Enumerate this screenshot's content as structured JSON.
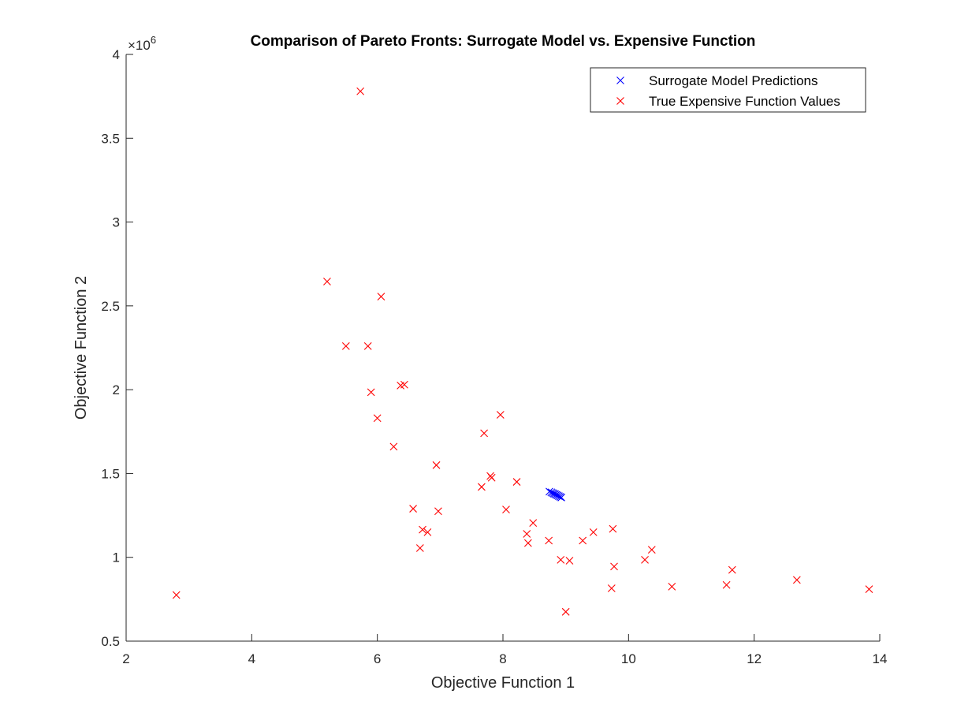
{
  "chart_data": {
    "type": "scatter",
    "title": "Comparison of Pareto Fronts: Surrogate Model vs. Expensive Function",
    "xlabel": "Objective Function 1",
    "ylabel": "Objective Function 2",
    "xlim": [
      2,
      14
    ],
    "ylim": [
      500000,
      4000000
    ],
    "x_ticks": [
      "2",
      "4",
      "6",
      "8",
      "10",
      "12",
      "14"
    ],
    "y_ticks": [
      "0.5",
      "1",
      "1.5",
      "2",
      "2.5",
      "3",
      "3.5",
      "4"
    ],
    "y_exponent_base": "×10",
    "y_exponent_power": "6",
    "legend_position": "top-right",
    "grid": false,
    "series": [
      {
        "name": "Surrogate Model Predictions",
        "color": "#0000ff",
        "marker": "x",
        "points": [
          [
            8.74,
            1392000
          ],
          [
            8.77,
            1388000
          ],
          [
            8.79,
            1384000
          ],
          [
            8.81,
            1380000
          ],
          [
            8.83,
            1377000
          ],
          [
            8.85,
            1373000
          ],
          [
            8.87,
            1369000
          ],
          [
            8.89,
            1365000
          ],
          [
            8.91,
            1361000
          ],
          [
            8.93,
            1357000
          ]
        ]
      },
      {
        "name": "True Expensive Function Values",
        "color": "#ff0000",
        "marker": "x",
        "points": [
          [
            2.8,
            775000
          ],
          [
            5.2,
            2645000
          ],
          [
            5.5,
            2260000
          ],
          [
            5.73,
            3780000
          ],
          [
            5.85,
            2260000
          ],
          [
            5.9,
            1985000
          ],
          [
            6.0,
            1830000
          ],
          [
            6.06,
            2555000
          ],
          [
            6.26,
            1660000
          ],
          [
            6.37,
            2025000
          ],
          [
            6.43,
            2030000
          ],
          [
            6.57,
            1290000
          ],
          [
            6.68,
            1055000
          ],
          [
            6.72,
            1165000
          ],
          [
            6.8,
            1150000
          ],
          [
            6.94,
            1550000
          ],
          [
            6.97,
            1275000
          ],
          [
            7.66,
            1420000
          ],
          [
            7.7,
            1740000
          ],
          [
            7.8,
            1485000
          ],
          [
            7.82,
            1475000
          ],
          [
            7.96,
            1850000
          ],
          [
            8.05,
            1285000
          ],
          [
            8.22,
            1450000
          ],
          [
            8.38,
            1140000
          ],
          [
            8.4,
            1085000
          ],
          [
            8.48,
            1205000
          ],
          [
            8.73,
            1100000
          ],
          [
            8.92,
            985000
          ],
          [
            9.0,
            675000
          ],
          [
            9.06,
            980000
          ],
          [
            9.27,
            1100000
          ],
          [
            9.44,
            1150000
          ],
          [
            9.73,
            815000
          ],
          [
            9.75,
            1170000
          ],
          [
            9.77,
            945000
          ],
          [
            10.26,
            985000
          ],
          [
            10.37,
            1045000
          ],
          [
            10.69,
            825000
          ],
          [
            11.56,
            835000
          ],
          [
            11.65,
            925000
          ],
          [
            12.68,
            865000
          ],
          [
            13.83,
            810000
          ]
        ]
      }
    ]
  }
}
